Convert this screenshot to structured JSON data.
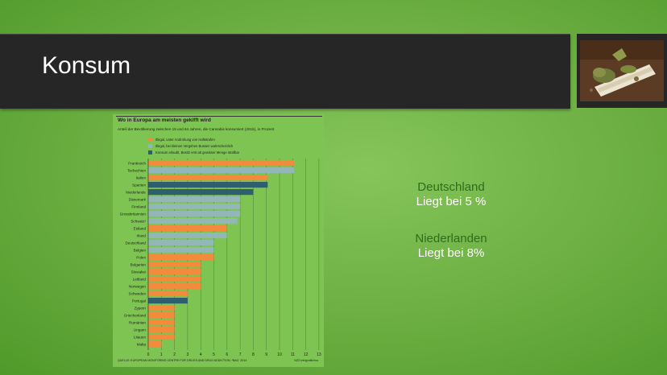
{
  "slide": {
    "title": "Konsum"
  },
  "image": {
    "icon": "cannabis-joint-photo"
  },
  "chart_data": {
    "type": "bar",
    "orientation": "horizontal",
    "title": "Wo in Europa am meisten gekifft wird",
    "subtitle": "Anteil der Bevölkerung zwischen 15 und 64 Jahren, die Cannabis konsumiert (2015), in Prozent",
    "legend": [
      {
        "label": "Illegal, unter Androhung von Haftstrafen",
        "color": "#f28c3c"
      },
      {
        "label": "Illegal, bei kleinen Vergehen Bussen wahrscheinlich",
        "color": "#93b6b6"
      },
      {
        "label": "Konsum erlaubt, Besitz erst ab gewisser Menge strafbar",
        "color": "#2e5f6e"
      }
    ],
    "categories": [
      "Frankreich",
      "Tschechien",
      "Italien",
      "Spanien",
      "Niederlande",
      "Dänemark",
      "Finnland",
      "Grossbritannien",
      "Schweiz¹",
      "Estland",
      "Irland",
      "Deutschland",
      "Belgien",
      "Polen",
      "Bulgarien",
      "Slowakei",
      "Lettland",
      "Norwegen",
      "Schweden",
      "Portugal",
      "Zypern",
      "Griechenland",
      "Rumänien",
      "Ungarn",
      "Litauen",
      "Malta"
    ],
    "values": [
      11.1,
      11.1,
      9.1,
      9.1,
      8.0,
      7.0,
      7.0,
      7.0,
      6.8,
      6.0,
      6.0,
      5.0,
      5.0,
      5.0,
      4.0,
      4.0,
      4.0,
      4.0,
      3.0,
      3.0,
      2.0,
      2.0,
      2.0,
      2.0,
      2.0,
      1.0
    ],
    "regimes": [
      0,
      1,
      0,
      2,
      2,
      1,
      1,
      1,
      1,
      0,
      1,
      1,
      1,
      0,
      0,
      0,
      0,
      0,
      0,
      2,
      0,
      0,
      0,
      0,
      0,
      0
    ],
    "x_ticks": [
      0,
      1,
      2,
      3,
      4,
      5,
      6,
      7,
      8,
      9,
      10,
      11,
      12,
      13
    ],
    "xlim": [
      0,
      13
    ],
    "grid": true,
    "source": "QUELLE: EUROPEAN MONITORING CENTRE FOR DRUGS AND DRUG ADDICTION; ¹BAG, 2014",
    "credit": "NZZ-Infografik/lmu."
  },
  "facts": [
    {
      "country": "Deutschland",
      "text": "Liegt bei 5 %"
    },
    {
      "country": "Niederlanden",
      "text": "Liegt bei 8%"
    }
  ]
}
